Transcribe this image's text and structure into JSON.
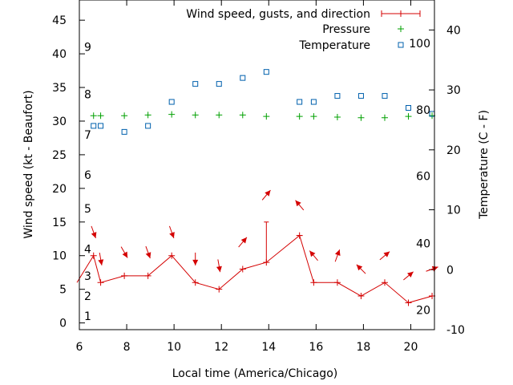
{
  "chart_data": {
    "type": "line",
    "xlabel": "Local time (America/Chicago)",
    "ylabel_left": "Wind speed (kt - Beaufort)",
    "ylabel_right": "Temperature (C - F)",
    "xlim": [
      6,
      21
    ],
    "ylim_left": [
      -1,
      48
    ],
    "ylim_right": [
      -10,
      45
    ],
    "x_ticks": [
      6,
      8,
      10,
      12,
      14,
      16,
      18,
      20
    ],
    "y_ticks_left": [
      0,
      5,
      10,
      15,
      20,
      25,
      30,
      35,
      40,
      45
    ],
    "y_ticks_right": [
      -10,
      0,
      10,
      20,
      30,
      40
    ],
    "beaufort_labels": [
      {
        "label": "1",
        "speed": 1
      },
      {
        "label": "2",
        "speed": 4
      },
      {
        "label": "3",
        "speed": 7
      },
      {
        "label": "4",
        "speed": 11
      },
      {
        "label": "5",
        "speed": 17
      },
      {
        "label": "6",
        "speed": 22
      },
      {
        "label": "7",
        "speed": 28
      },
      {
        "label": "8",
        "speed": 34
      },
      {
        "label": "9",
        "speed": 41
      }
    ],
    "fahrenheit_labels": [
      {
        "label": "20",
        "temp_c": -6.7
      },
      {
        "label": "40",
        "temp_c": 4.4
      },
      {
        "label": "60",
        "temp_c": 15.6
      },
      {
        "label": "80",
        "temp_c": 26.7
      },
      {
        "label": "100",
        "temp_c": 37.8
      }
    ],
    "legend": {
      "position": "top-right",
      "wind_label": "Wind speed, gusts, and direction",
      "pressure_label": "Pressure",
      "temperature_label": "Temperature"
    },
    "colors": {
      "wind": "#d40000",
      "pressure": "#00a000",
      "temperature": "#0060ad"
    },
    "wind_speed": {
      "x": [
        5.9,
        6.6,
        6.9,
        7.9,
        8.9,
        9.9,
        10.9,
        11.9,
        12.9,
        13.9,
        15.3,
        15.9,
        16.9,
        17.9,
        18.9,
        19.9,
        20.9
      ],
      "y": [
        6,
        10,
        6,
        7,
        7,
        10,
        6,
        5,
        8,
        9,
        13,
        6,
        6,
        4,
        6,
        3,
        4
      ]
    },
    "wind_gusts": [
      {
        "x": 13.9,
        "y": 15
      },
      {
        "x": 15.3,
        "y": 13
      }
    ],
    "wind_direction": [
      {
        "x": 6.6,
        "y": 13.5,
        "deg": 340
      },
      {
        "x": 6.9,
        "y": 9.5,
        "deg": 350
      },
      {
        "x": 7.9,
        "y": 10.5,
        "deg": 330
      },
      {
        "x": 8.9,
        "y": 10.5,
        "deg": 340
      },
      {
        "x": 9.9,
        "y": 13.5,
        "deg": 340
      },
      {
        "x": 10.9,
        "y": 9.5,
        "deg": 0
      },
      {
        "x": 11.9,
        "y": 8.5,
        "deg": 350
      },
      {
        "x": 12.9,
        "y": 12.0,
        "deg": 220
      },
      {
        "x": 13.9,
        "y": 19.0,
        "deg": 220
      },
      {
        "x": 15.3,
        "y": 17.5,
        "deg": 140
      },
      {
        "x": 15.9,
        "y": 10.0,
        "deg": 140
      },
      {
        "x": 16.9,
        "y": 10.0,
        "deg": 200
      },
      {
        "x": 17.9,
        "y": 8.0,
        "deg": 135
      },
      {
        "x": 18.9,
        "y": 10.0,
        "deg": 230
      },
      {
        "x": 19.9,
        "y": 7.0,
        "deg": 230
      },
      {
        "x": 20.9,
        "y": 8.0,
        "deg": 250
      }
    ],
    "pressure": {
      "x": [
        6.6,
        6.9,
        7.9,
        8.9,
        9.9,
        10.9,
        11.9,
        12.9,
        13.9,
        15.3,
        15.9,
        16.9,
        17.9,
        18.9,
        19.9,
        20.9
      ],
      "y": [
        30.8,
        30.8,
        30.8,
        30.9,
        31.0,
        30.9,
        30.9,
        30.9,
        30.7,
        30.7,
        30.7,
        30.6,
        30.5,
        30.5,
        30.7,
        30.8
      ]
    },
    "temperature": {
      "x": [
        6.6,
        6.9,
        7.9,
        8.9,
        9.9,
        10.9,
        11.9,
        12.9,
        13.9,
        15.3,
        15.9,
        16.9,
        17.9,
        18.9,
        19.9,
        20.9
      ],
      "y": [
        24.0,
        24.0,
        23.0,
        24.0,
        28.0,
        31.0,
        31.0,
        32.0,
        33.0,
        28.0,
        28.0,
        29.0,
        29.0,
        29.0,
        27.0,
        26.0
      ]
    }
  }
}
